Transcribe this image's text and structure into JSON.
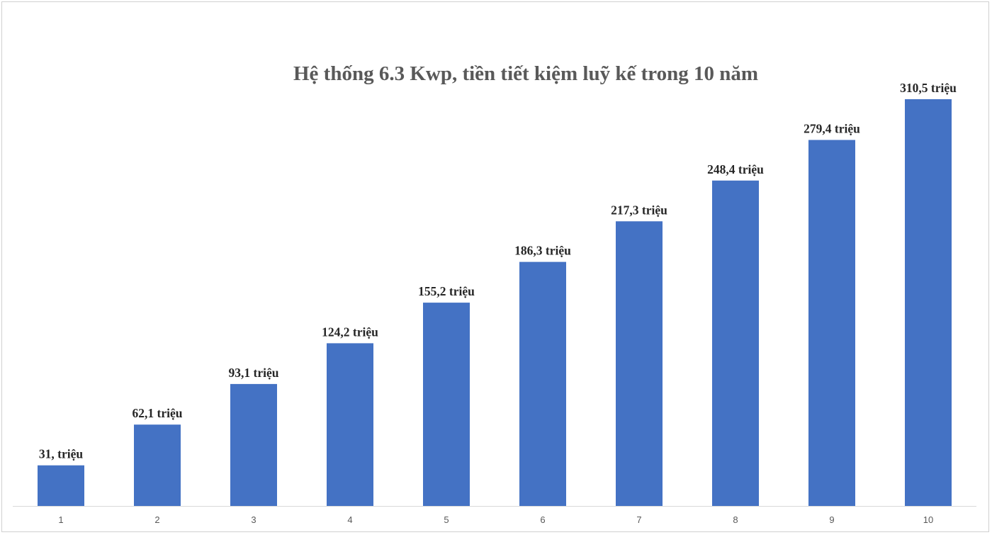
{
  "chart_data": {
    "type": "bar",
    "title": "Hệ thống 6.3 Kwp, tiền tiết kiệm luỹ kế trong 10 năm",
    "xlabel": "",
    "ylabel": "",
    "categories": [
      "1",
      "2",
      "3",
      "4",
      "5",
      "6",
      "7",
      "8",
      "9",
      "10"
    ],
    "values": [
      31.0,
      62.1,
      93.1,
      124.2,
      155.2,
      186.3,
      217.3,
      248.4,
      279.4,
      310.5
    ],
    "data_labels": [
      "31, triệu",
      "62,1 triệu",
      "93,1 triệu",
      "124,2 triệu",
      "155,2 triệu",
      "186,3 triệu",
      "217,3 triệu",
      "248,4 triệu",
      "279,4 triệu",
      "310,5 triệu"
    ],
    "ylim": [
      0,
      310.5
    ],
    "grid": false,
    "legend": "none",
    "colors": {
      "bar": "#4472C4",
      "title": "#595959",
      "data_label": "#262626",
      "axis": "#d9d9d9",
      "tick_label": "#595959"
    }
  }
}
